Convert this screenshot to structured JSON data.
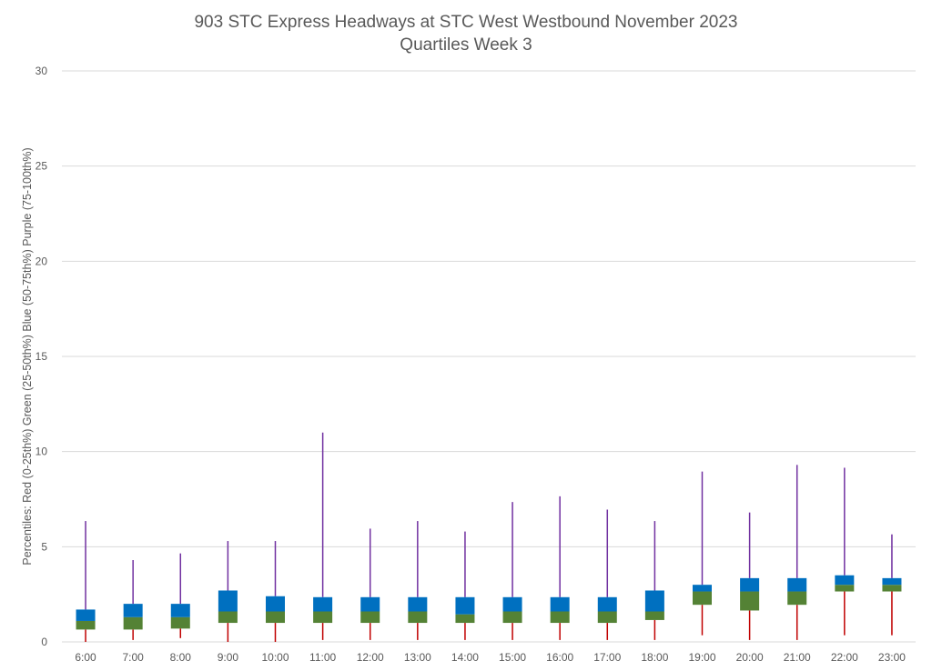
{
  "chart_data": {
    "type": "box",
    "title": "903 STC Express Headways at STC West Westbound November 2023",
    "subtitle": "Quartiles Week 3",
    "ylabel": "Percentiles:  Red (0-25th%)  Green (25-50th%)  Blue (50-75th%)  Purple (75-100th%)",
    "xlabel": "",
    "ylim": [
      0,
      30
    ],
    "yticks": [
      0,
      5,
      10,
      15,
      20,
      25,
      30
    ],
    "grid": true,
    "colors": {
      "q1_whisker": "#c00000",
      "q2_box": "#548235",
      "q3_box": "#0070c0",
      "q4_whisker": "#7030a0",
      "grid": "#d9d9d9",
      "text": "#595959"
    },
    "categories": [
      "6:00",
      "7:00",
      "8:00",
      "9:00",
      "10:00",
      "11:00",
      "12:00",
      "13:00",
      "14:00",
      "15:00",
      "16:00",
      "17:00",
      "18:00",
      "19:00",
      "20:00",
      "21:00",
      "22:00",
      "23:00"
    ],
    "series": [
      {
        "values": [
          0,
          0.65,
          1.1,
          1.7,
          6.35
        ]
      },
      {
        "values": [
          0.1,
          0.65,
          1.3,
          2.0,
          4.3
        ]
      },
      {
        "values": [
          0.2,
          0.7,
          1.3,
          2.0,
          4.65
        ]
      },
      {
        "values": [
          0,
          1.0,
          1.6,
          2.7,
          5.3
        ]
      },
      {
        "values": [
          0,
          1.0,
          1.6,
          2.4,
          5.3
        ]
      },
      {
        "values": [
          0.1,
          1.0,
          1.6,
          2.35,
          11.0
        ]
      },
      {
        "values": [
          0.1,
          1.0,
          1.6,
          2.35,
          5.95
        ]
      },
      {
        "values": [
          0.1,
          1.0,
          1.6,
          2.35,
          6.35
        ]
      },
      {
        "values": [
          0.1,
          1.0,
          1.45,
          2.35,
          5.8
        ]
      },
      {
        "values": [
          0.1,
          1.0,
          1.6,
          2.35,
          7.35
        ]
      },
      {
        "values": [
          0.1,
          1.0,
          1.6,
          2.35,
          7.65
        ]
      },
      {
        "values": [
          0.1,
          1.0,
          1.6,
          2.35,
          6.95
        ]
      },
      {
        "values": [
          0.1,
          1.15,
          1.6,
          2.7,
          6.35
        ]
      },
      {
        "values": [
          0.35,
          1.95,
          2.65,
          3.0,
          8.95
        ]
      },
      {
        "values": [
          0.1,
          1.65,
          2.65,
          3.35,
          6.8
        ]
      },
      {
        "values": [
          0.1,
          1.95,
          2.65,
          3.35,
          9.3
        ]
      },
      {
        "values": [
          0.35,
          2.65,
          3.0,
          3.5,
          9.15
        ]
      },
      {
        "values": [
          0.35,
          2.65,
          3.0,
          3.35,
          5.65
        ]
      }
    ]
  }
}
